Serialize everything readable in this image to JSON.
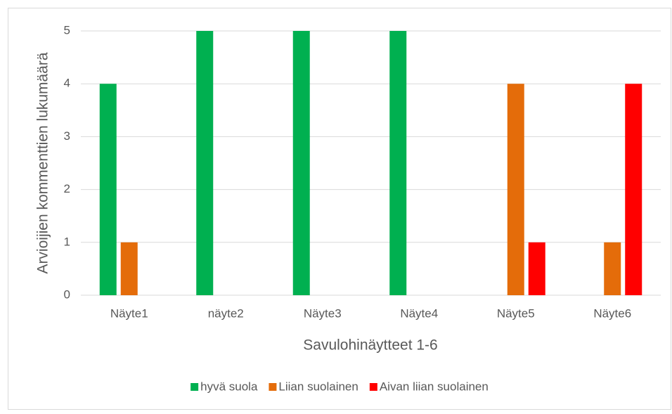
{
  "chart_data": {
    "type": "bar",
    "x_label": "Savulohinäytteet 1-6",
    "y_label": "Arvioijien kommenttien lukumäärä",
    "categories": [
      "Näyte1",
      "näyte2",
      "Näyte3",
      "Näyte4",
      "Näyte5",
      "Näyte6"
    ],
    "series": [
      {
        "name": "hyvä suola",
        "color": "#00b050",
        "values": [
          4,
          5,
          5,
          5,
          0,
          0
        ]
      },
      {
        "name": "Liian suolainen",
        "color": "#e46c0a",
        "values": [
          1,
          0,
          0,
          0,
          4,
          1
        ]
      },
      {
        "name": "Aivan liian suolainen",
        "color": "#ff0000",
        "values": [
          0,
          0,
          0,
          0,
          1,
          4
        ]
      }
    ],
    "ylim": [
      0,
      5
    ],
    "yticks": [
      0,
      1,
      2,
      3,
      4,
      5
    ],
    "grid": true,
    "legend": "bottom"
  }
}
